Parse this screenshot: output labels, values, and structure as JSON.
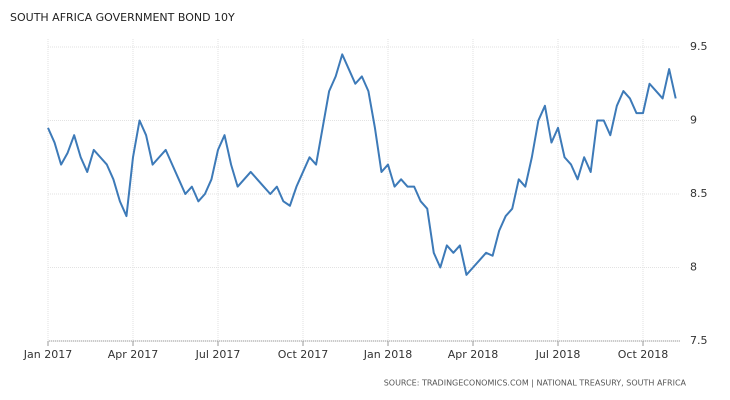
{
  "chart_data": {
    "type": "line",
    "title": "SOUTH AFRICA GOVERNMENT BOND 10Y",
    "source": "SOURCE: TRADINGECONOMICS.COM | NATIONAL TREASURY, SOUTH AFRICA",
    "categories": [
      "Jan 2017",
      null,
      null,
      null,
      null,
      null,
      null,
      null,
      null,
      null,
      null,
      null,
      null,
      "Apr 2017",
      null,
      null,
      null,
      null,
      null,
      null,
      null,
      null,
      null,
      null,
      null,
      null,
      "Jul 2017",
      null,
      null,
      null,
      null,
      null,
      null,
      null,
      null,
      null,
      null,
      null,
      null,
      "Oct 2017",
      null,
      null,
      null,
      null,
      null,
      null,
      null,
      null,
      null,
      null,
      null,
      null,
      "Jan 2018",
      null,
      null,
      null,
      null,
      null,
      null,
      null,
      null,
      null,
      null,
      null,
      null,
      "Apr 2018",
      null,
      null,
      null,
      null,
      null,
      null,
      null,
      null,
      null,
      null,
      null,
      null,
      "Jul 2018",
      null,
      null,
      null,
      null,
      null,
      null,
      null,
      null,
      null,
      null,
      null,
      null,
      "Oct 2018",
      null,
      null,
      null,
      null,
      null
    ],
    "values": [
      8.95,
      8.85,
      8.7,
      8.78,
      8.9,
      8.75,
      8.65,
      8.8,
      8.75,
      8.7,
      8.6,
      8.45,
      8.35,
      8.75,
      9.0,
      8.9,
      8.7,
      8.75,
      8.8,
      8.7,
      8.6,
      8.5,
      8.55,
      8.45,
      8.5,
      8.6,
      8.8,
      8.9,
      8.7,
      8.55,
      8.6,
      8.65,
      8.6,
      8.55,
      8.5,
      8.55,
      8.45,
      8.42,
      8.55,
      8.65,
      8.75,
      8.7,
      8.95,
      9.2,
      9.3,
      9.45,
      9.35,
      9.25,
      9.3,
      9.2,
      8.95,
      8.65,
      8.7,
      8.55,
      8.6,
      8.55,
      8.55,
      8.45,
      8.4,
      8.1,
      8.0,
      8.15,
      8.1,
      8.15,
      7.95,
      8.0,
      8.05,
      8.1,
      8.08,
      8.25,
      8.35,
      8.4,
      8.6,
      8.55,
      8.75,
      9.0,
      9.1,
      8.85,
      8.95,
      8.75,
      8.7,
      8.6,
      8.75,
      8.65,
      9.0,
      9.0,
      8.9,
      9.1,
      9.2,
      9.15,
      9.05,
      9.05,
      9.25,
      9.2,
      9.15,
      9.35,
      9.15
    ],
    "color": "#3d7ab8",
    "ylim": [
      7.5,
      9.5
    ],
    "yticks": [
      7.5,
      8,
      8.5,
      9,
      9.5
    ],
    "grid": true
  }
}
